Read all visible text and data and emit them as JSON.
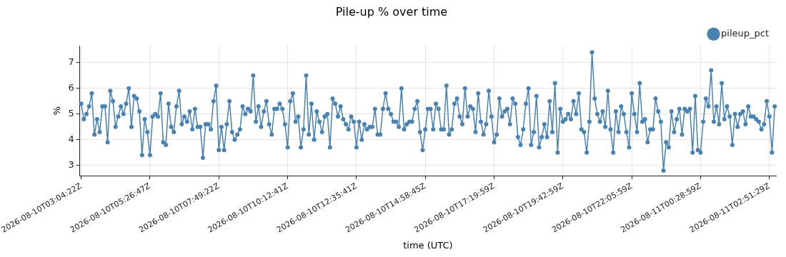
{
  "chart_data": {
    "type": "line",
    "title": "Pile-up % over time",
    "xlabel": "time (UTC)",
    "ylabel": "%",
    "categories": [
      "2026-08-10T03:04:22Z",
      null,
      null,
      null,
      null,
      null,
      null,
      null,
      null,
      null,
      null,
      null,
      null,
      null,
      null,
      null,
      null,
      null,
      null,
      null,
      null,
      null,
      null,
      null,
      null,
      null,
      "2026-08-10T05:26:47Z",
      null,
      null,
      null,
      null,
      null,
      null,
      null,
      null,
      null,
      null,
      null,
      null,
      null,
      null,
      null,
      null,
      null,
      null,
      null,
      null,
      null,
      null,
      null,
      null,
      null,
      "2026-08-10T07:49:22Z",
      null,
      null,
      null,
      null,
      null,
      null,
      null,
      null,
      null,
      null,
      null,
      null,
      null,
      null,
      null,
      null,
      null,
      null,
      null,
      null,
      null,
      null,
      null,
      null,
      null,
      "2026-08-10T10:12:41Z",
      null,
      null,
      null,
      null,
      null,
      null,
      null,
      null,
      null,
      null,
      null,
      null,
      null,
      null,
      null,
      null,
      null,
      null,
      null,
      null,
      null,
      null,
      null,
      null,
      null,
      "2026-08-10T12:35:41Z",
      null,
      null,
      null,
      null,
      null,
      null,
      null,
      null,
      null,
      null,
      null,
      null,
      null,
      null,
      null,
      null,
      null,
      null,
      null,
      null,
      null,
      null,
      null,
      null,
      null,
      "2026-08-10T14:58:45Z",
      null,
      null,
      null,
      null,
      null,
      null,
      null,
      null,
      null,
      null,
      null,
      null,
      null,
      null,
      null,
      null,
      null,
      null,
      null,
      null,
      null,
      null,
      null,
      null,
      null,
      "2026-08-10T17:19:59Z",
      null,
      null,
      null,
      null,
      null,
      null,
      null,
      null,
      null,
      null,
      null,
      null,
      null,
      null,
      null,
      null,
      null,
      null,
      null,
      null,
      null,
      null,
      null,
      null,
      null,
      "2026-08-10T19:42:59Z",
      null,
      null,
      null,
      null,
      null,
      null,
      null,
      null,
      null,
      null,
      null,
      null,
      null,
      null,
      null,
      null,
      null,
      null,
      null,
      null,
      null,
      null,
      null,
      null,
      null,
      "2026-08-10T22:05:59Z",
      null,
      null,
      null,
      null,
      null,
      null,
      null,
      null,
      null,
      null,
      null,
      null,
      null,
      null,
      null,
      null,
      null,
      null,
      null,
      null,
      null,
      null,
      null,
      null,
      null,
      "2026-08-11T00:28:59Z",
      null,
      null,
      null,
      null,
      null,
      null,
      null,
      null,
      null,
      null,
      null,
      null,
      null,
      null,
      null,
      null,
      null,
      null,
      null,
      null,
      null,
      null,
      null,
      null,
      null,
      "2026-08-11T02:51:29Z",
      null,
      null
    ],
    "series": [
      {
        "name": "pileup_pct",
        "color": "#4682b4",
        "values": [
          5.4,
          4.8,
          5.0,
          5.3,
          5.8,
          4.2,
          4.8,
          4.3,
          5.3,
          5.3,
          3.9,
          5.9,
          5.5,
          4.5,
          4.9,
          5.3,
          5.0,
          5.4,
          6.0,
          4.5,
          5.7,
          5.6,
          5.1,
          3.4,
          4.8,
          4.3,
          3.4,
          4.9,
          5.0,
          4.9,
          5.8,
          3.9,
          3.8,
          5.4,
          4.5,
          4.3,
          5.3,
          5.9,
          4.6,
          4.9,
          4.7,
          5.1,
          4.4,
          5.2,
          4.5,
          4.5,
          3.3,
          4.6,
          4.6,
          4.4,
          5.5,
          6.1,
          3.6,
          4.5,
          3.6,
          4.6,
          5.5,
          4.3,
          4.0,
          4.2,
          4.4,
          5.3,
          5.0,
          5.2,
          5.1,
          6.5,
          4.7,
          5.3,
          4.5,
          5.1,
          5.5,
          4.6,
          4.2,
          5.2,
          5.2,
          5.4,
          5.2,
          4.6,
          3.7,
          5.5,
          5.8,
          4.7,
          4.9,
          3.7,
          4.4,
          6.5,
          4.2,
          5.4,
          4.0,
          5.1,
          4.7,
          4.3,
          4.9,
          5.0,
          3.7,
          5.6,
          5.4,
          4.9,
          5.3,
          4.8,
          4.6,
          4.4,
          4.9,
          4.7,
          3.7,
          4.7,
          4.0,
          4.6,
          4.4,
          4.5,
          4.5,
          5.2,
          4.2,
          4.2,
          5.2,
          5.8,
          5.2,
          5.0,
          4.7,
          4.7,
          4.5,
          6.0,
          4.4,
          4.6,
          4.7,
          4.7,
          5.2,
          5.5,
          4.3,
          3.6,
          4.4,
          5.2,
          5.2,
          4.4,
          5.4,
          5.2,
          4.4,
          4.4,
          6.1,
          4.2,
          4.4,
          5.4,
          5.6,
          4.9,
          4.6,
          6.0,
          4.9,
          5.3,
          5.2,
          4.3,
          5.8,
          4.7,
          4.2,
          4.6,
          5.9,
          4.9,
          3.9,
          4.2,
          5.6,
          4.9,
          5.1,
          5.2,
          4.6,
          5.6,
          5.4,
          4.1,
          3.8,
          4.4,
          5.4,
          6.0,
          3.8,
          4.3,
          5.7,
          3.7,
          4.1,
          4.6,
          4.1,
          5.5,
          4.3,
          6.2,
          3.5,
          5.2,
          4.7,
          4.8,
          5.0,
          4.8,
          5.5,
          5.0,
          5.8,
          4.4,
          4.3,
          3.5,
          4.7,
          7.4,
          5.6,
          5.0,
          4.7,
          5.1,
          4.5,
          5.9,
          4.4,
          3.5,
          5.1,
          4.3,
          5.3,
          5.0,
          4.3,
          3.7,
          5.8,
          5.0,
          4.3,
          6.2,
          4.7,
          4.8,
          3.9,
          4.4,
          4.4,
          5.6,
          5.1,
          4.7,
          2.8,
          3.9,
          3.7,
          5.1,
          4.3,
          4.8,
          5.2,
          4.2,
          5.2,
          5.1,
          5.2,
          3.5,
          5.7,
          3.6,
          3.5,
          4.7,
          5.6,
          5.3,
          6.7,
          4.7,
          5.3,
          4.6,
          6.2,
          4.8,
          5.3,
          4.9,
          3.8,
          5.0,
          4.5,
          5.0,
          5.1,
          4.6,
          5.3,
          4.9,
          4.9,
          4.8,
          4.7,
          4.4,
          4.6,
          5.5,
          4.9,
          3.5,
          5.3
        ]
      }
    ],
    "ylim": [
      2.6,
      7.65
    ],
    "yticks": [
      3,
      4,
      5,
      6,
      7
    ],
    "grid": true,
    "legend": "top right",
    "marker": "circle",
    "line_style": "solid"
  }
}
